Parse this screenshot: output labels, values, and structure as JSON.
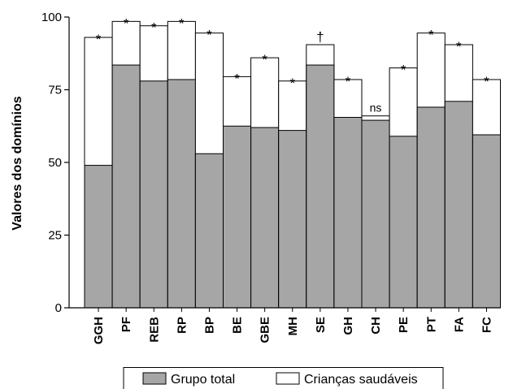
{
  "chart_data": {
    "type": "bar",
    "ylabel": "Valores dos domínios",
    "xlabel": "",
    "ylim": [
      0,
      100
    ],
    "yticks": [
      0,
      25,
      50,
      75,
      100
    ],
    "grid": false,
    "legend_position": "bottom",
    "categories": [
      "GGH",
      "PF",
      "REB",
      "RP",
      "BP",
      "BE",
      "GBE",
      "MH",
      "SE",
      "GH",
      "CH",
      "PE",
      "PT",
      "FA",
      "FC"
    ],
    "series": [
      {
        "name": "Grupo total",
        "color": "#a6a6a6",
        "values": [
          49,
          83.5,
          78,
          78.5,
          53,
          62.5,
          62,
          61,
          83.5,
          65.5,
          64.5,
          59,
          69,
          71,
          59.5
        ]
      },
      {
        "name": "Crianças saudáveis",
        "color": "#ffffff",
        "values": [
          93,
          98.5,
          97,
          98.5,
          94.5,
          79.5,
          86,
          78,
          90.5,
          78.5,
          66,
          82.5,
          94.5,
          90.5,
          78.5
        ]
      }
    ],
    "annotations": [
      "*",
      "*",
      "*",
      "*",
      "*",
      "*",
      "*",
      "*",
      "†",
      "*",
      "ns",
      "*",
      "*",
      "*",
      "*"
    ]
  }
}
